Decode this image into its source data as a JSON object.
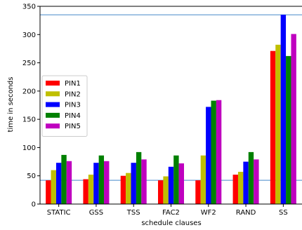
{
  "chart_data": {
    "type": "bar",
    "title": "",
    "xlabel": "schedule clauses",
    "ylabel": "time in seconds",
    "ylim": [
      0,
      350
    ],
    "yticks": [
      0,
      50,
      100,
      150,
      200,
      250,
      300,
      350
    ],
    "categories": [
      "STATIC",
      "GSS",
      "TSS",
      "FAC2",
      "WF2",
      "RAND",
      "SS"
    ],
    "series": [
      {
        "name": "PIN1",
        "color": "#ff0000",
        "values": [
          42,
          44,
          50,
          42,
          42,
          52,
          271
        ]
      },
      {
        "name": "PIN2",
        "color": "#bfbf00",
        "values": [
          60,
          52,
          55,
          49,
          86,
          57,
          282
        ]
      },
      {
        "name": "PIN3",
        "color": "#0000ff",
        "values": [
          73,
          73,
          73,
          66,
          172,
          75,
          335
        ]
      },
      {
        "name": "PIN4",
        "color": "#008000",
        "values": [
          87,
          86,
          92,
          86,
          183,
          92,
          262
        ]
      },
      {
        "name": "PIN5",
        "color": "#bf00bf",
        "values": [
          76,
          76,
          79,
          72,
          184,
          79,
          301
        ]
      }
    ],
    "reference_lines": [
      {
        "value": 335,
        "color": "#6a9fd4",
        "orientation": "horizontal"
      },
      {
        "value": 42,
        "color": "#6a9fd4",
        "orientation": "horizontal"
      }
    ],
    "legend_position": "center-left",
    "grid": false
  }
}
